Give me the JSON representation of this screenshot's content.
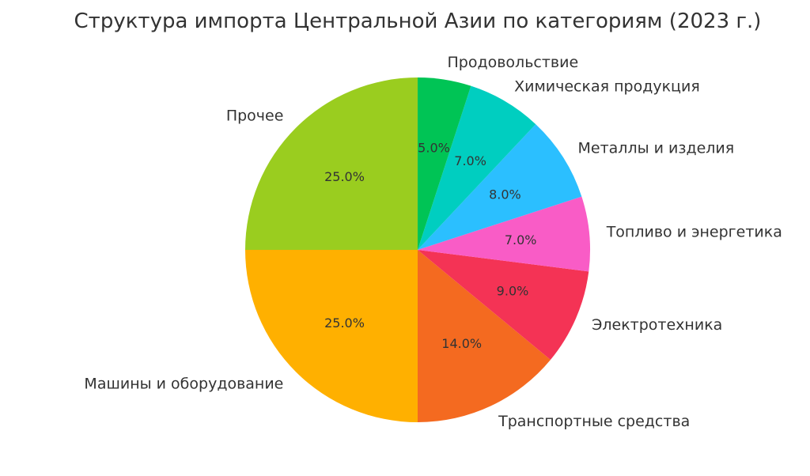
{
  "chart_data": {
    "type": "pie",
    "title": "Структура импорта Центральной Азии по категориям (2023 г.)",
    "start_angle_deg": 90,
    "direction": "counterclockwise",
    "slices": [
      {
        "label": "Прочее",
        "value": 25.0,
        "pct_label": "25.0%",
        "color": "#9ACD1F"
      },
      {
        "label": "Машины и оборудование",
        "value": 25.0,
        "pct_label": "25.0%",
        "color": "#FFB000"
      },
      {
        "label": "Транспортные средства",
        "value": 14.0,
        "pct_label": "14.0%",
        "color": "#F46A20"
      },
      {
        "label": "Электротехника",
        "value": 9.0,
        "pct_label": "9.0%",
        "color": "#F43355"
      },
      {
        "label": "Топливо и энергетика",
        "value": 7.0,
        "pct_label": "7.0%",
        "color": "#F95CC6"
      },
      {
        "label": "Металлы и изделия",
        "value": 8.0,
        "pct_label": "8.0%",
        "color": "#2BBFFF"
      },
      {
        "label": "Химическая продукция",
        "value": 7.0,
        "pct_label": "7.0%",
        "color": "#00CEC0"
      },
      {
        "label": "Продовольствие",
        "value": 5.0,
        "pct_label": "5.0%",
        "color": "#00C455"
      }
    ]
  }
}
